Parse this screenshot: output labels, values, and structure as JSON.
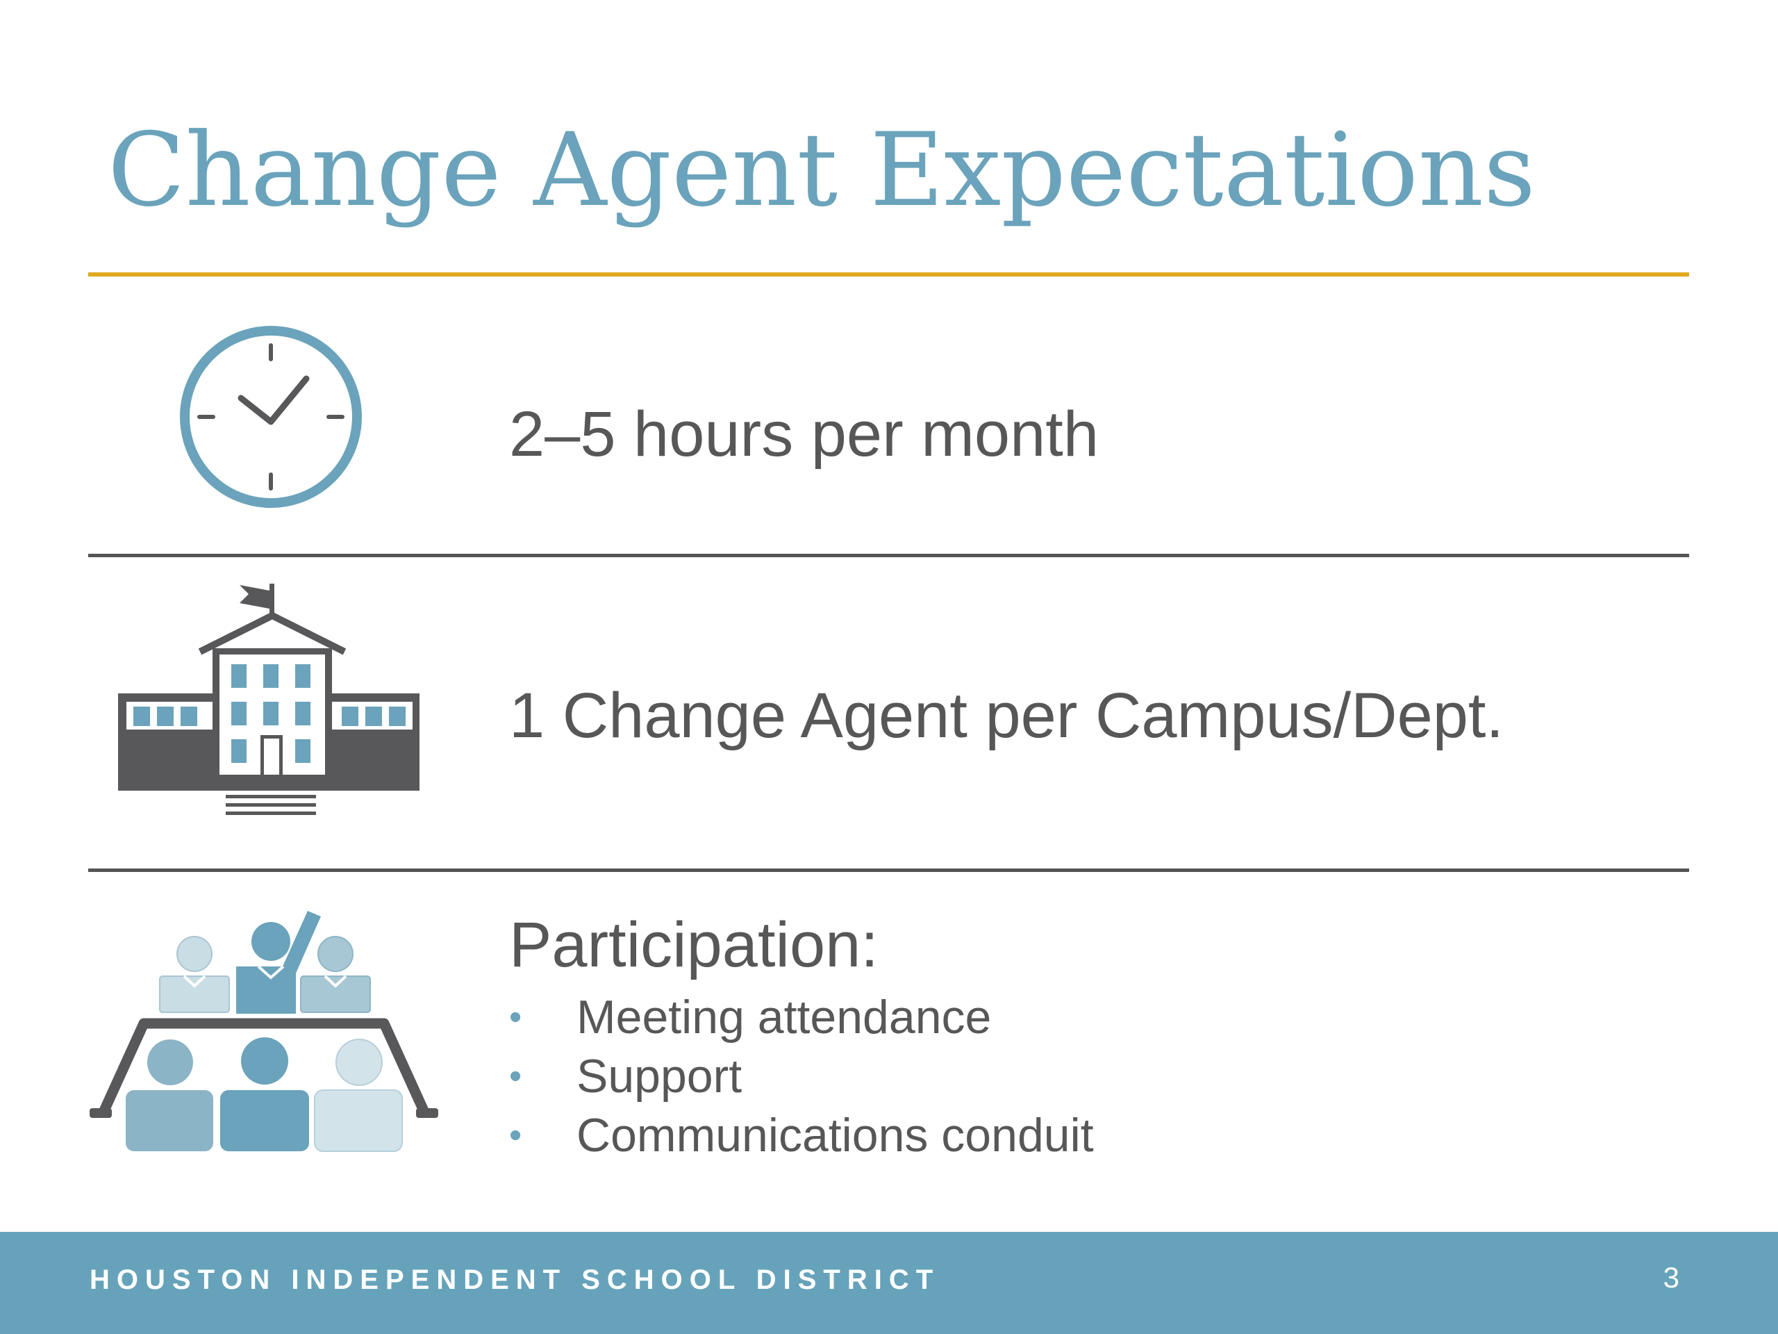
{
  "slide": {
    "title": "Change Agent Expectations"
  },
  "rows": [
    {
      "icon": "clock-icon",
      "text": "2–5 hours per month"
    },
    {
      "icon": "school-building-icon",
      "text": "1 Change Agent per Campus/Dept."
    },
    {
      "icon": "meeting-participation-icon",
      "text": "Participation:",
      "bullets": [
        "Meeting attendance",
        "Support",
        "Communications conduit"
      ]
    }
  ],
  "footer": {
    "organization": "HOUSTON INDEPENDENT SCHOOL DISTRICT",
    "page_number": "3"
  },
  "colors": {
    "title": "#6aa3bb",
    "accent_rule": "#e0a81e",
    "divider": "#555557",
    "body_text": "#575757",
    "footer_bar": "#66a3ba",
    "icon_dark": "#58585a",
    "icon_blue": "#6aa3bb"
  }
}
